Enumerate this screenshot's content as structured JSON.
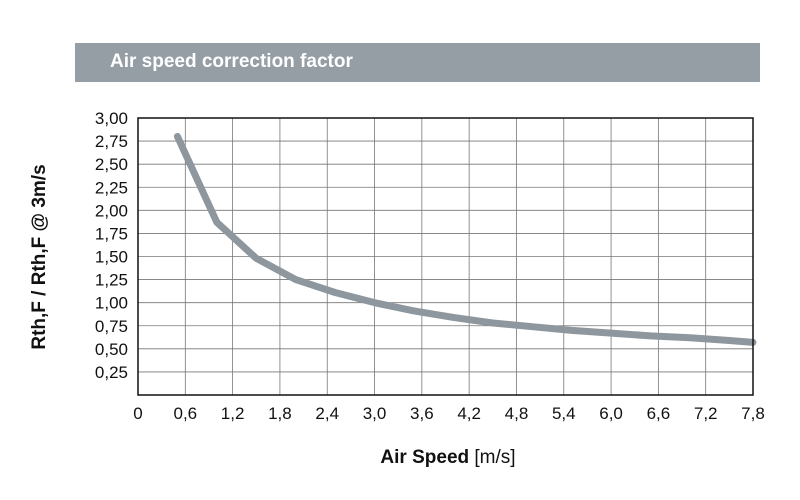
{
  "header": {
    "title": "Air speed correction factor"
  },
  "chart_data": {
    "type": "line",
    "title": "Air speed correction factor",
    "xlabel_bold": "Air Speed",
    "xlabel_unit": "[m/s]",
    "ylabel": "Rth,F / Rth,F @ 3m/s",
    "xlim": [
      0,
      7.8
    ],
    "ylim": [
      0,
      3.0
    ],
    "grid": true,
    "x_ticks": [
      0,
      0.6,
      1.2,
      1.8,
      2.4,
      3.0,
      3.6,
      4.2,
      4.8,
      5.4,
      6.0,
      6.6,
      7.2,
      7.8
    ],
    "x_tick_labels": [
      "0",
      "0,6",
      "1,2",
      "1,8",
      "2,4",
      "3,0",
      "3,6",
      "4,2",
      "4,8",
      "5,4",
      "6,0",
      "6,6",
      "7,2",
      "7,8"
    ],
    "y_ticks": [
      0.25,
      0.5,
      0.75,
      1.0,
      1.25,
      1.5,
      1.75,
      2.0,
      2.25,
      2.5,
      2.75,
      3.0
    ],
    "y_tick_labels": [
      "0,25",
      "0,50",
      "0,75",
      "1,00",
      "1,25",
      "1,50",
      "1,75",
      "2,00",
      "2,25",
      "2,50",
      "2,75",
      "3,00"
    ],
    "series": [
      {
        "color": "#8e979e",
        "x": [
          0.5,
          1.0,
          1.5,
          2.0,
          2.5,
          3.0,
          3.5,
          4.0,
          4.5,
          5.0,
          5.5,
          6.0,
          6.5,
          7.0,
          7.5,
          7.8
        ],
        "y": [
          2.8,
          1.87,
          1.48,
          1.25,
          1.11,
          1.0,
          0.91,
          0.84,
          0.78,
          0.74,
          0.7,
          0.67,
          0.64,
          0.62,
          0.59,
          0.57
        ]
      }
    ]
  }
}
